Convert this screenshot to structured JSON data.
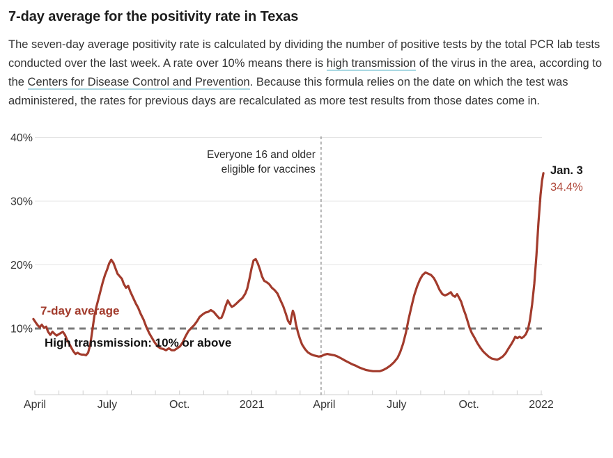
{
  "page": {
    "title": "7-day average for the positivity rate in Texas",
    "description_segments": [
      {
        "text": "The seven-day average positivity rate is calculated by dividing the number of positive tests by the total PCR lab tests conducted over the last week. A rate over 10% means there is ",
        "link": false
      },
      {
        "text": "high transmission",
        "link": true
      },
      {
        "text": " of the virus in the area, according to the ",
        "link": false
      },
      {
        "text": "Centers for Disease Control and Prevention",
        "link": true
      },
      {
        "text": ". Because this formula relies on the date on which the test was administered, the rates for previous days are recalculated as more test results from those dates come in.",
        "link": false
      }
    ]
  },
  "colors": {
    "accent_line": "#a23b2c",
    "endpoint_value_text": "#b04a3c",
    "endpoint_date_text": "#1a1a1a",
    "title_text": "#1d1d1d",
    "body_text": "#333333",
    "link_underline": "#a9d8e2",
    "gridline": "#e4e4e4",
    "axis_line": "#cfcfcf",
    "tick_label_text": "#333333",
    "threshold_line": "#7a7a7a",
    "threshold_label_text": "#111111",
    "event_line": "#9c9c9c",
    "annotation_text": "#2b2b2b"
  },
  "chart_data": {
    "type": "line",
    "series_label": "7-day average",
    "x_unit": "months_since_April_2020",
    "x_tick_labels": [
      {
        "label": "April",
        "month": 0
      },
      {
        "label": "July",
        "month": 3
      },
      {
        "label": "Oct.",
        "month": 6
      },
      {
        "label": "2021",
        "month": 9
      },
      {
        "label": "April",
        "month": 12
      },
      {
        "label": "July",
        "month": 15
      },
      {
        "label": "Oct.",
        "month": 18
      },
      {
        "label": "2022",
        "month": 21
      }
    ],
    "month_tick_count": 22,
    "y_ticks": [
      {
        "label": "40%",
        "value": 40
      },
      {
        "label": "30%",
        "value": 30
      },
      {
        "label": "20%",
        "value": 20
      },
      {
        "label": "10%",
        "value": 10
      }
    ],
    "ylim": [
      0,
      42
    ],
    "threshold": {
      "value": 10,
      "label": "High transmission: 10% or above"
    },
    "event_line": {
      "month": 11.87,
      "label_line1": "Everyone 16 and older",
      "label_line2": "eligible for vaccines"
    },
    "endpoint": {
      "date_label": "Jan. 3",
      "value_label": "34.4%",
      "value": 34.4,
      "month": 21.09
    },
    "points": [
      [
        -0.06,
        11.5
      ],
      [
        0.03,
        11.0
      ],
      [
        0.12,
        10.5
      ],
      [
        0.2,
        10.2
      ],
      [
        0.29,
        10.6
      ],
      [
        0.38,
        10.1
      ],
      [
        0.47,
        10.3
      ],
      [
        0.55,
        9.5
      ],
      [
        0.64,
        9.0
      ],
      [
        0.73,
        9.5
      ],
      [
        0.81,
        9.2
      ],
      [
        0.9,
        8.9
      ],
      [
        0.99,
        9.1
      ],
      [
        1.08,
        9.3
      ],
      [
        1.16,
        9.5
      ],
      [
        1.25,
        9.0
      ],
      [
        1.34,
        8.2
      ],
      [
        1.43,
        7.6
      ],
      [
        1.51,
        7.0
      ],
      [
        1.6,
        6.4
      ],
      [
        1.69,
        6.0
      ],
      [
        1.77,
        6.2
      ],
      [
        1.86,
        6.0
      ],
      [
        1.95,
        5.9
      ],
      [
        2.04,
        5.9
      ],
      [
        2.12,
        5.8
      ],
      [
        2.21,
        6.2
      ],
      [
        2.3,
        7.5
      ],
      [
        2.39,
        9.8
      ],
      [
        2.47,
        12.0
      ],
      [
        2.56,
        13.5
      ],
      [
        2.65,
        14.8
      ],
      [
        2.73,
        16.0
      ],
      [
        2.82,
        17.3
      ],
      [
        2.91,
        18.4
      ],
      [
        3.0,
        19.3
      ],
      [
        3.08,
        20.2
      ],
      [
        3.17,
        20.8
      ],
      [
        3.26,
        20.3
      ],
      [
        3.34,
        19.5
      ],
      [
        3.43,
        18.6
      ],
      [
        3.52,
        18.2
      ],
      [
        3.61,
        17.8
      ],
      [
        3.69,
        17.0
      ],
      [
        3.78,
        16.4
      ],
      [
        3.87,
        16.7
      ],
      [
        3.96,
        15.8
      ],
      [
        4.07,
        14.9
      ],
      [
        4.19,
        13.9
      ],
      [
        4.28,
        13.3
      ],
      [
        4.39,
        12.3
      ],
      [
        4.51,
        11.4
      ],
      [
        4.62,
        10.3
      ],
      [
        4.74,
        9.3
      ],
      [
        4.86,
        8.5
      ],
      [
        4.97,
        7.8
      ],
      [
        5.09,
        7.2
      ],
      [
        5.21,
        6.9
      ],
      [
        5.32,
        6.8
      ],
      [
        5.44,
        6.6
      ],
      [
        5.56,
        6.9
      ],
      [
        5.67,
        6.6
      ],
      [
        5.79,
        6.6
      ],
      [
        5.9,
        6.9
      ],
      [
        6.02,
        7.2
      ],
      [
        6.14,
        7.9
      ],
      [
        6.25,
        8.8
      ],
      [
        6.37,
        9.6
      ],
      [
        6.49,
        10.1
      ],
      [
        6.6,
        10.5
      ],
      [
        6.72,
        11.1
      ],
      [
        6.83,
        11.8
      ],
      [
        6.95,
        12.2
      ],
      [
        7.07,
        12.5
      ],
      [
        7.18,
        12.6
      ],
      [
        7.3,
        12.9
      ],
      [
        7.42,
        12.6
      ],
      [
        7.53,
        12.1
      ],
      [
        7.65,
        11.6
      ],
      [
        7.74,
        11.7
      ],
      [
        7.82,
        12.4
      ],
      [
        7.91,
        13.5
      ],
      [
        8.0,
        14.4
      ],
      [
        8.09,
        13.8
      ],
      [
        8.17,
        13.4
      ],
      [
        8.26,
        13.6
      ],
      [
        8.38,
        14.0
      ],
      [
        8.49,
        14.4
      ],
      [
        8.61,
        14.8
      ],
      [
        8.73,
        15.5
      ],
      [
        8.81,
        16.3
      ],
      [
        8.9,
        17.8
      ],
      [
        8.99,
        19.5
      ],
      [
        9.07,
        20.7
      ],
      [
        9.16,
        20.9
      ],
      [
        9.25,
        20.2
      ],
      [
        9.34,
        19.2
      ],
      [
        9.42,
        18.2
      ],
      [
        9.51,
        17.5
      ],
      [
        9.6,
        17.3
      ],
      [
        9.71,
        17.0
      ],
      [
        9.83,
        16.4
      ],
      [
        9.95,
        16.0
      ],
      [
        10.06,
        15.5
      ],
      [
        10.18,
        14.5
      ],
      [
        10.3,
        13.5
      ],
      [
        10.41,
        12.3
      ],
      [
        10.5,
        11.2
      ],
      [
        10.59,
        10.7
      ],
      [
        10.64,
        11.8
      ],
      [
        10.7,
        12.8
      ],
      [
        10.76,
        12.2
      ],
      [
        10.82,
        10.8
      ],
      [
        10.91,
        9.4
      ],
      [
        10.99,
        8.4
      ],
      [
        11.08,
        7.5
      ],
      [
        11.2,
        6.8
      ],
      [
        11.31,
        6.3
      ],
      [
        11.43,
        6.0
      ],
      [
        11.55,
        5.8
      ],
      [
        11.66,
        5.7
      ],
      [
        11.78,
        5.6
      ],
      [
        11.9,
        5.7
      ],
      [
        12.01,
        5.9
      ],
      [
        12.13,
        6.0
      ],
      [
        12.27,
        5.9
      ],
      [
        12.42,
        5.8
      ],
      [
        12.56,
        5.6
      ],
      [
        12.71,
        5.3
      ],
      [
        12.85,
        5.0
      ],
      [
        13.0,
        4.7
      ],
      [
        13.15,
        4.4
      ],
      [
        13.29,
        4.2
      ],
      [
        13.44,
        3.9
      ],
      [
        13.58,
        3.7
      ],
      [
        13.73,
        3.5
      ],
      [
        13.87,
        3.4
      ],
      [
        14.02,
        3.3
      ],
      [
        14.16,
        3.3
      ],
      [
        14.31,
        3.3
      ],
      [
        14.45,
        3.5
      ],
      [
        14.6,
        3.8
      ],
      [
        14.75,
        4.2
      ],
      [
        14.89,
        4.7
      ],
      [
        15.04,
        5.4
      ],
      [
        15.15,
        6.3
      ],
      [
        15.27,
        7.6
      ],
      [
        15.39,
        9.4
      ],
      [
        15.5,
        11.5
      ],
      [
        15.62,
        13.5
      ],
      [
        15.73,
        15.2
      ],
      [
        15.85,
        16.6
      ],
      [
        15.97,
        17.7
      ],
      [
        16.08,
        18.4
      ],
      [
        16.2,
        18.8
      ],
      [
        16.32,
        18.6
      ],
      [
        16.43,
        18.4
      ],
      [
        16.55,
        17.9
      ],
      [
        16.66,
        17.1
      ],
      [
        16.78,
        16.1
      ],
      [
        16.9,
        15.4
      ],
      [
        17.01,
        15.2
      ],
      [
        17.13,
        15.4
      ],
      [
        17.25,
        15.7
      ],
      [
        17.33,
        15.2
      ],
      [
        17.42,
        15.0
      ],
      [
        17.51,
        15.4
      ],
      [
        17.6,
        14.8
      ],
      [
        17.68,
        14.2
      ],
      [
        17.77,
        13.1
      ],
      [
        17.86,
        12.2
      ],
      [
        17.95,
        11.1
      ],
      [
        18.03,
        10.1
      ],
      [
        18.12,
        9.3
      ],
      [
        18.24,
        8.5
      ],
      [
        18.35,
        7.7
      ],
      [
        18.47,
        7.0
      ],
      [
        18.59,
        6.4
      ],
      [
        18.7,
        6.0
      ],
      [
        18.82,
        5.6
      ],
      [
        18.94,
        5.3
      ],
      [
        19.05,
        5.2
      ],
      [
        19.17,
        5.1
      ],
      [
        19.28,
        5.3
      ],
      [
        19.4,
        5.6
      ],
      [
        19.52,
        6.1
      ],
      [
        19.63,
        6.8
      ],
      [
        19.75,
        7.5
      ],
      [
        19.84,
        8.1
      ],
      [
        19.92,
        8.7
      ],
      [
        20.01,
        8.5
      ],
      [
        20.1,
        8.7
      ],
      [
        20.19,
        8.5
      ],
      [
        20.27,
        8.7
      ],
      [
        20.36,
        9.1
      ],
      [
        20.45,
        9.9
      ],
      [
        20.53,
        11.3
      ],
      [
        20.62,
        13.8
      ],
      [
        20.71,
        17.0
      ],
      [
        20.8,
        21.5
      ],
      [
        20.88,
        26.5
      ],
      [
        20.97,
        31.0
      ],
      [
        21.03,
        33.2
      ],
      [
        21.09,
        34.4
      ]
    ]
  }
}
